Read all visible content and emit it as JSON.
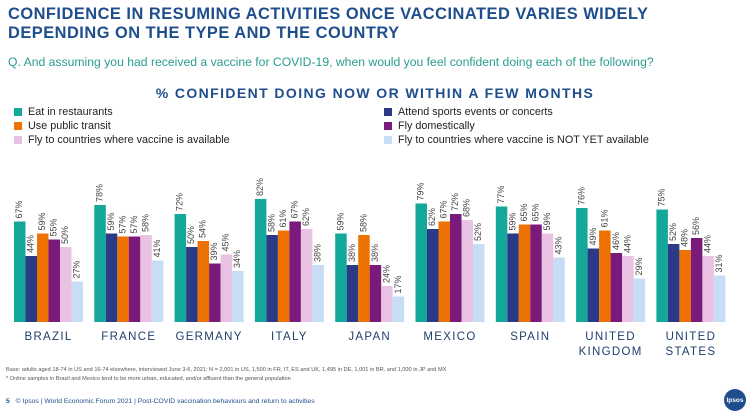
{
  "headline": "CONFIDENCE IN RESUMING ACTIVITIES ONCE VACCINATED VARIES WIDELY DEPENDING ON THE TYPE AND THE COUNTRY",
  "question": "Q. And assuming you had received a vaccine for COVID-19, when would you feel confident doing each of the following?",
  "footnote_base": "Base: adults aged 18-74 in US and 16-74 elsewhere, interviewed June 3-6, 2021; N = 2,001 in US, 1,500 in FR, IT, ES and UK, 1,495 in DE, 1,001 in BR, and 1,000 in JP and MX",
  "footnote_sample": "* Online samples in Brazil and Mexico tend to be more urban, educated, and/or affluent than the general population",
  "footer": {
    "page": "5",
    "text": "© Ipsos | World Economic Forum 2021 | Post-COVID vaccination behaviours and return to activities"
  },
  "logo_text": "Ipsos",
  "chart_data": {
    "type": "bar",
    "title": "% CONFIDENT DOING NOW OR WITHIN A FEW MONTHS",
    "categories": [
      "BRAZIL",
      "FRANCE",
      "GERMANY",
      "ITALY",
      "JAPAN",
      "MEXICO",
      "SPAIN",
      "UNITED KINGDOM",
      "UNITED STATES"
    ],
    "category_lines": [
      [
        "BRAZIL"
      ],
      [
        "FRANCE"
      ],
      [
        "GERMANY"
      ],
      [
        "ITALY"
      ],
      [
        "JAPAN"
      ],
      [
        "MEXICO"
      ],
      [
        "SPAIN"
      ],
      [
        "UNITED",
        "KINGDOM"
      ],
      [
        "UNITED",
        "STATES"
      ]
    ],
    "value_suffix": "%",
    "ylim": [
      0,
      100
    ],
    "series": [
      {
        "name": "Eat in restaurants",
        "color": "#14a89a",
        "values": [
          67,
          78,
          72,
          82,
          59,
          79,
          77,
          76,
          75
        ]
      },
      {
        "name": "Attend sports events or concerts",
        "color": "#2b3a87",
        "values": [
          44,
          59,
          50,
          58,
          38,
          62,
          59,
          49,
          52
        ]
      },
      {
        "name": "Use public transit",
        "color": "#ee7203",
        "values": [
          59,
          57,
          54,
          61,
          58,
          67,
          65,
          61,
          48
        ]
      },
      {
        "name": "Fly domestically",
        "color": "#7a1a7a",
        "values": [
          55,
          57,
          39,
          67,
          38,
          72,
          65,
          46,
          56
        ]
      },
      {
        "name": "Fly to countries where vaccine is available",
        "color": "#e9c2e3",
        "values": [
          50,
          58,
          45,
          62,
          24,
          68,
          59,
          44,
          44
        ]
      },
      {
        "name": "Fly to countries where vaccine is NOT YET available",
        "color": "#c7dcf5",
        "values": [
          27,
          41,
          34,
          38,
          17,
          52,
          43,
          29,
          31
        ]
      }
    ],
    "legend_position": "top, two columns",
    "grid": false
  }
}
